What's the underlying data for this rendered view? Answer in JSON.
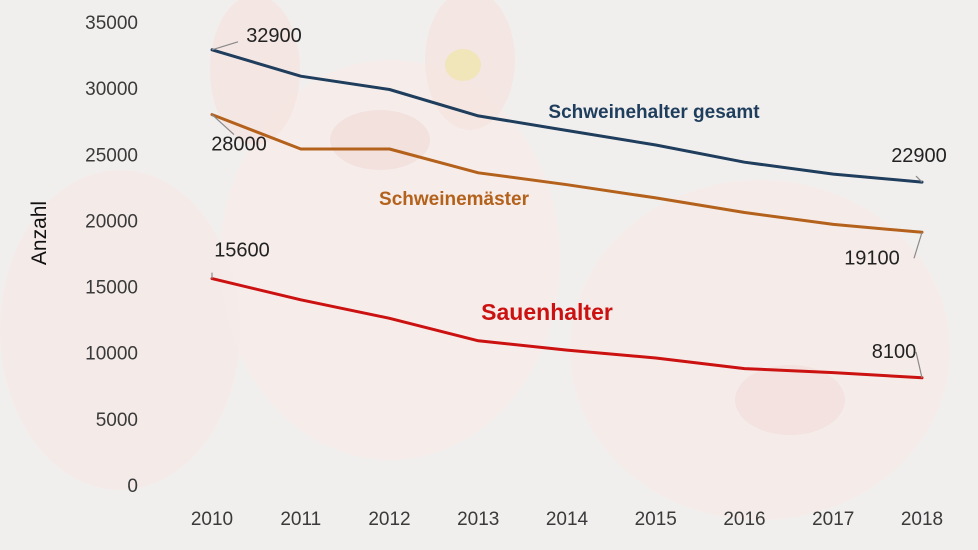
{
  "chart_data": {
    "type": "line",
    "title": "",
    "xlabel": "",
    "ylabel": "Anzahl",
    "ylim": [
      0,
      35000
    ],
    "yticks": [
      "0",
      "5000",
      "10000",
      "15000",
      "20000",
      "25000",
      "30000",
      "35000"
    ],
    "categories": [
      "2010",
      "2011",
      "2012",
      "2013",
      "2014",
      "2015",
      "2016",
      "2017",
      "2018"
    ],
    "grid": false,
    "legend": "inline",
    "series": [
      {
        "name": "Schweinehalter gesamt",
        "color": "#1f3d5c",
        "values": [
          32900,
          30900,
          29900,
          27900,
          26800,
          25700,
          24400,
          23500,
          22900
        ],
        "labels": [
          {
            "index": 0,
            "text": "32900"
          },
          {
            "index": 8,
            "text": "22900"
          }
        ]
      },
      {
        "name": "Schweinemäster",
        "color": "#b4611c",
        "values": [
          28000,
          25400,
          25400,
          23600,
          22700,
          21700,
          20600,
          19700,
          19100
        ],
        "labels": [
          {
            "index": 0,
            "text": "28000"
          },
          {
            "index": 8,
            "text": "19100"
          }
        ]
      },
      {
        "name": "Sauenhalter",
        "color": "#cc1111",
        "values": [
          15600,
          14000,
          12600,
          10900,
          10200,
          9600,
          8800,
          8500,
          8100
        ],
        "labels": [
          {
            "index": 0,
            "text": "15600"
          },
          {
            "index": 8,
            "text": "8100"
          }
        ]
      }
    ]
  }
}
